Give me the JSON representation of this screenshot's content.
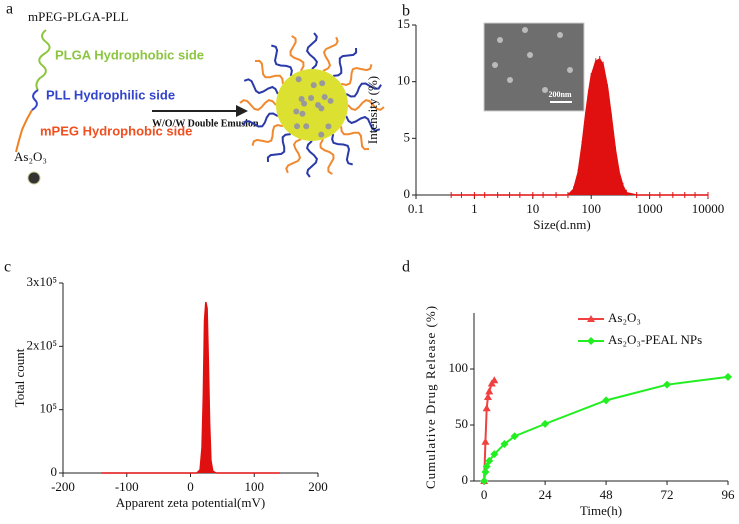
{
  "diagram": {
    "label": "a",
    "title": "mPEG-PLGA-PLL",
    "plga": "PLGA Hydrophobic side",
    "pll": "PLL Hydrophilic side",
    "process": "W/O/W Double Emusion",
    "mpeg": "mPEG Hydrophobic side",
    "drug": "As₂O₃"
  },
  "chart_data": [
    {
      "type": "area",
      "panel": "b",
      "xlabel": "Size(d.nm)",
      "ylabel": "Intensity (%)",
      "log_x": true,
      "color": "#e01010",
      "inset_label": "200nm",
      "xlim": [
        0.1,
        10000
      ],
      "xticks": [
        0.1,
        1,
        10,
        100,
        1000,
        10000
      ],
      "ylim": [
        0,
        15
      ],
      "yticks": [
        0,
        5,
        10,
        15
      ],
      "x": [
        0.4,
        0.6,
        1,
        1.5,
        2.5,
        4,
        6,
        10,
        15,
        25,
        40,
        50,
        60,
        70,
        80,
        90,
        100,
        120,
        140,
        160,
        190,
        220,
        260,
        300,
        350,
        400,
        600,
        1000,
        1500,
        2500,
        4000,
        6000,
        10000
      ],
      "values": [
        0,
        0,
        0,
        0,
        0,
        0,
        0,
        0,
        0,
        0,
        0,
        0.5,
        2,
        4.5,
        7,
        9,
        10.5,
        11.8,
        12,
        11.5,
        9.5,
        7,
        4,
        2,
        0.8,
        0.2,
        0,
        0,
        0,
        0,
        0,
        0,
        0
      ]
    },
    {
      "type": "area",
      "panel": "c",
      "xlabel": "Apparent zeta potential(mV)",
      "ylabel": "Total count",
      "log_x": false,
      "color": "#e01010",
      "xlim": [
        -200,
        200
      ],
      "xticks": [
        -200,
        -100,
        0,
        100,
        200
      ],
      "ylim": [
        0,
        300000
      ],
      "yticks": [
        0,
        {
          "value": 100000,
          "label": "10⁵"
        },
        {
          "value": 200000,
          "label": "2x10⁵"
        },
        {
          "value": 300000,
          "label": "3x10⁵"
        }
      ],
      "x": [
        -140,
        10,
        15,
        18,
        20,
        22,
        24,
        26,
        28,
        30,
        32,
        35,
        40,
        140
      ],
      "values": [
        0,
        0,
        5000,
        40000,
        120000,
        240000,
        270000,
        260000,
        180000,
        80000,
        20000,
        3000,
        0,
        0
      ]
    },
    {
      "type": "line",
      "panel": "d",
      "xlabel": "Time(h)",
      "ylabel": "Cumulative Drug Release (%)",
      "legend": "upper right",
      "xlim": [
        -4,
        96
      ],
      "xticks": [
        0,
        24,
        48,
        72,
        96
      ],
      "ylim": [
        0,
        150
      ],
      "yticks": [
        0,
        50,
        100
      ],
      "series": [
        {
          "name": "As₂O₃",
          "color": "#f04040",
          "marker": "triangle",
          "x": [
            0,
            0.5,
            1,
            1.5,
            2,
            3,
            4
          ],
          "values": [
            0,
            35,
            65,
            75,
            80,
            87,
            90
          ]
        },
        {
          "name": "As₂O₃-PEAL NPs",
          "color": "#22ee22",
          "marker": "diamond",
          "x": [
            0,
            0.5,
            1,
            2,
            4,
            8,
            12,
            24,
            48,
            72,
            96
          ],
          "values": [
            0,
            8,
            13,
            18,
            24,
            33,
            40,
            51,
            72,
            86,
            93
          ]
        }
      ]
    }
  ]
}
